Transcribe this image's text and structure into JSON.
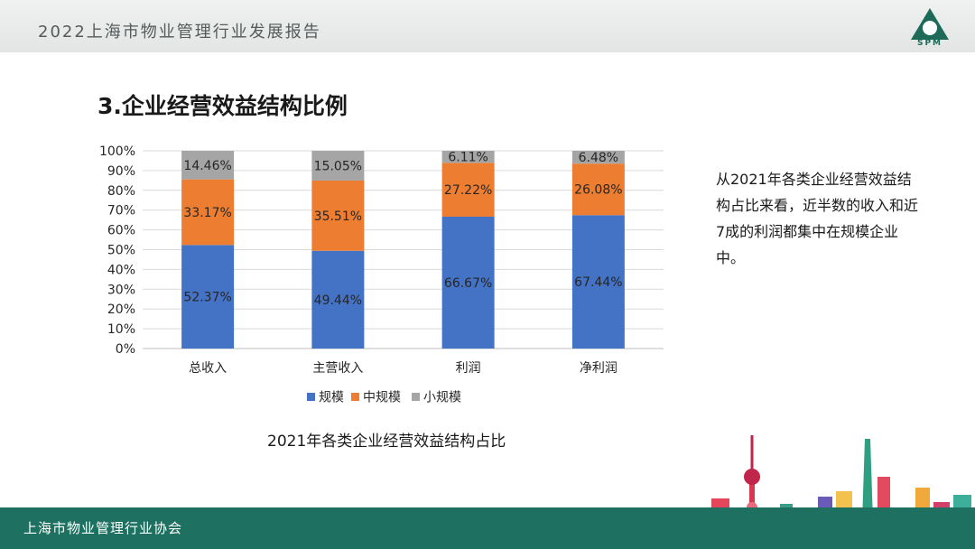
{
  "header": {
    "title": "2022上海市物业管理行业发展报告",
    "logo_text": "SPM"
  },
  "section_title": "3.企业经营效益结构比例",
  "side_note": "从2021年各类企业经营效益结构占比来看，近半数的收入和近7成的利润都集中在规模企业中。",
  "footer": {
    "text": "上海市物业管理行业协会"
  },
  "chart_data": {
    "type": "bar",
    "stacked": true,
    "categories": [
      "总收入",
      "主营收入",
      "利润",
      "净利润"
    ],
    "series": [
      {
        "name": "规模",
        "color": "#4472c4",
        "values": [
          52.37,
          49.44,
          66.67,
          67.44
        ],
        "labels": [
          "52.37%",
          "49.44%",
          "66.67%",
          "67.44%"
        ]
      },
      {
        "name": "中规模",
        "color": "#ed7d31",
        "values": [
          33.17,
          35.51,
          27.22,
          26.08
        ],
        "labels": [
          "33.17%",
          "35.51%",
          "27.22%",
          "26.08%"
        ]
      },
      {
        "name": "小规模",
        "color": "#a5a5a5",
        "values": [
          14.46,
          15.05,
          6.11,
          6.48
        ],
        "labels": [
          "14.46%",
          "15.05%",
          "6.11%",
          "6.48%"
        ]
      }
    ],
    "ylim": [
      0,
      100
    ],
    "yticks": [
      "0%",
      "10%",
      "20%",
      "30%",
      "40%",
      "50%",
      "60%",
      "70%",
      "80%",
      "90%",
      "100%"
    ],
    "grid": true,
    "legend_position": "bottom",
    "title": "2021年各类企业经营效益结构占比"
  }
}
